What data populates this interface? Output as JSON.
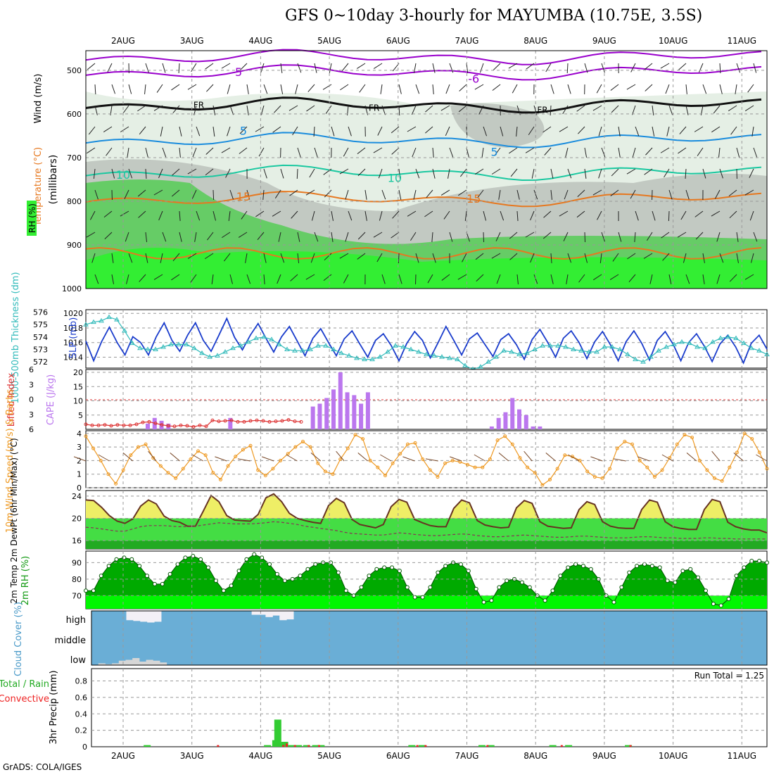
{
  "title": "GFS 0~10day 3-hourly for MAYUMBA (10.75E, 3.5S)",
  "credit": "GrADS: COLA/IGES",
  "date_labels": [
    "2AUG",
    "3AUG",
    "4AUG",
    "5AUG",
    "6AUG",
    "7AUG",
    "8AUG",
    "9AUG",
    "10AUG",
    "11AUG"
  ],
  "colors": {
    "rh_light": "#e5efe5",
    "rh_mid": "#c2c9c2",
    "rh_green": "#66cc66",
    "rh_bright": "#33ee33",
    "temp_purple": "#9900cc",
    "temp_blue": "#1a8cdd",
    "temp_teal": "#1ac8a0",
    "temp_orange": "#e67820",
    "slp": "#1a3ccc",
    "thickness": "#33bbbb",
    "cape": "#bb77ee",
    "lifted": "#dd3333",
    "wind_speed": "#ee9922",
    "temp_fill": "#eeee66",
    "dew_fill": "#44dd44",
    "rh2m_dark": "#00aa00",
    "rh2m_light": "#00ff00",
    "cloud_bg": "#6aaed6",
    "cloud_high": "#f3f0f6",
    "cloud_low": "#d6d6d6",
    "precip_total": "#33cc33",
    "precip_conv": "#ee2222"
  },
  "chart_data": [
    {
      "type": "heatmap",
      "name": "upper",
      "ylabel": "Wind (m/s)",
      "ylabel2": "Temperature (°C)",
      "ylabel3": "(millibars)",
      "legend_label": "RH (%)",
      "y_ticks": [
        500,
        600,
        700,
        800,
        900,
        1000
      ],
      "ylim": [
        455,
        1000
      ],
      "contour_labels": [
        {
          "text": "-5",
          "day": 3.65,
          "p": 505,
          "color": "temp_purple"
        },
        {
          "text": "-6",
          "day": 7.1,
          "p": 520,
          "color": "temp_purple"
        },
        {
          "text": "FR",
          "day": 3.1,
          "p": 578,
          "color": "black"
        },
        {
          "text": "FR",
          "day": 5.65,
          "p": 585,
          "color": "black"
        },
        {
          "text": "FR",
          "day": 8.1,
          "p": 590,
          "color": "black"
        },
        {
          "text": "5",
          "day": 3.75,
          "p": 640,
          "color": "temp_blue"
        },
        {
          "text": "5",
          "day": 7.4,
          "p": 688,
          "color": "temp_blue"
        },
        {
          "text": "10",
          "day": 2.0,
          "p": 740,
          "color": "temp_teal"
        },
        {
          "text": "10",
          "day": 5.95,
          "p": 748,
          "color": "temp_teal"
        },
        {
          "text": "15",
          "day": 3.75,
          "p": 790,
          "color": "temp_orange"
        },
        {
          "text": "15",
          "day": 7.1,
          "p": 795,
          "color": "temp_orange"
        }
      ]
    },
    {
      "type": "line",
      "name": "slp_thickness",
      "ylabel_left": "1000-500mb Thickness (dm)",
      "ylabel_right": "SLP (mb)",
      "left_ticks": [
        572,
        573,
        574,
        575,
        576
      ],
      "left_lim": [
        571.5,
        576.2
      ],
      "right_ticks": [
        1014,
        1016,
        1018,
        1020
      ],
      "right_lim": [
        1012.5,
        1020.5
      ],
      "series": [
        {
          "name": "SLP",
          "color_key": "slp",
          "values": [
            1016.2,
            1013.5,
            1016.1,
            1018.1,
            1016.0,
            1014.3,
            1016.8,
            1016.0,
            1014.3,
            1016.8,
            1018.7,
            1016.3,
            1014.8,
            1017.0,
            1018.7,
            1016.3,
            1014.8,
            1017.0,
            1019.3,
            1016.7,
            1015.0,
            1017.0,
            1018.6,
            1016.6,
            1014.7,
            1016.8,
            1018.2,
            1016.2,
            1014.2,
            1016.6,
            1017.9,
            1016.0,
            1014.2,
            1016.5,
            1017.6,
            1015.8,
            1014.0,
            1016.3,
            1017.2,
            1015.6,
            1013.5,
            1015.9,
            1017.5,
            1016.3,
            1013.9,
            1016.0,
            1018.2,
            1016.3,
            1014.3,
            1016.5,
            1017.3,
            1015.7,
            1014.1,
            1016.4,
            1017.2,
            1015.7,
            1013.7,
            1016.4,
            1017.8,
            1016.0,
            1014.0,
            1016.6,
            1017.6,
            1016.0,
            1013.8,
            1016.1,
            1017.5,
            1015.7,
            1013.5,
            1016.1,
            1017.6,
            1015.9,
            1013.6,
            1016.3,
            1017.5,
            1015.8,
            1013.5,
            1016.0,
            1017.2,
            1015.5,
            1013.4,
            1015.8,
            1017.0,
            1015.4,
            1013.2,
            1015.9,
            1017.0,
            1015.1
          ]
        },
        {
          "name": "Thickness",
          "color_key": "thickness",
          "values": [
            575.0,
            575.2,
            575.3,
            575.6,
            575.4,
            574.5,
            573.5,
            573.1,
            573.0,
            573.0,
            573.2,
            573.4,
            573.4,
            573.4,
            573.1,
            572.7,
            572.4,
            572.5,
            572.8,
            573.1,
            573.3,
            573.6,
            573.9,
            574.0,
            573.8,
            573.4,
            573.0,
            572.9,
            572.9,
            573.0,
            573.3,
            573.3,
            573.0,
            572.7,
            572.5,
            572.3,
            572.2,
            572.2,
            572.4,
            572.8,
            573.3,
            573.2,
            573.0,
            572.8,
            572.6,
            572.5,
            572.4,
            572.3,
            572.2,
            571.7,
            571.4,
            571.6,
            572.0,
            572.4,
            572.9,
            572.8,
            572.6,
            572.7,
            573.0,
            573.3,
            573.3,
            573.3,
            573.2,
            573.0,
            572.9,
            572.8,
            572.8,
            573.2,
            573.2,
            573.0,
            572.6,
            572.2,
            572.0,
            572.4,
            572.9,
            573.2,
            573.4,
            573.6,
            573.5,
            573.2,
            573.1,
            573.6,
            573.9,
            574.0,
            573.9,
            573.5,
            573.1,
            572.9,
            572.6
          ]
        }
      ]
    },
    {
      "type": "bar",
      "name": "cape_li",
      "ylabel_left": "Lifted Index",
      "ylabel_right": "CAPE (J/kg)",
      "left_ticks": [
        -6,
        -3,
        0,
        3,
        6
      ],
      "left_tick_labels": [
        "6",
        "3",
        "0",
        "3",
        "6"
      ],
      "right_ticks": [
        5,
        10,
        15,
        20
      ],
      "right_lim": [
        0,
        21
      ],
      "cape": [
        0,
        0,
        0,
        0,
        0,
        0,
        0,
        0,
        0,
        2,
        4,
        3,
        2,
        0,
        0,
        0,
        0,
        0,
        0,
        0,
        0,
        4,
        0,
        0,
        0,
        0,
        0,
        0,
        0,
        0,
        0,
        0,
        0,
        8,
        9,
        11,
        14,
        20,
        13,
        12,
        9,
        13,
        0,
        0,
        0,
        0,
        0,
        0,
        0,
        0,
        0,
        0,
        0,
        0,
        0,
        0,
        0,
        0,
        0,
        1,
        4,
        6,
        11,
        7,
        5,
        1,
        1,
        0,
        0,
        0,
        0,
        0,
        0,
        0,
        0,
        0,
        0,
        0,
        0,
        0,
        0,
        0,
        0,
        0,
        0,
        0,
        0,
        0,
        0,
        0,
        0,
        0,
        0,
        0,
        0,
        0,
        0,
        0,
        0,
        0
      ],
      "cape_indices_start": 0,
      "lifted_index": [
        5,
        5.2,
        5.2,
        5.1,
        5.3,
        5.1,
        5.2,
        5.2,
        5.0,
        4.6,
        4.5,
        4.8,
        5.1,
        5.3,
        5.4,
        5.2,
        5.3,
        5.5,
        5.2,
        5.4,
        4.2,
        4.4,
        4.3,
        4.2,
        4.5,
        4.5,
        4.3,
        4.2,
        4.3,
        4.5,
        4.4,
        4.3,
        4.1,
        4.4,
        4.5
      ]
    },
    {
      "type": "line",
      "name": "wind10m",
      "ylabel": "10m Wind Speed (m/s) & Barbs",
      "y_ticks": [
        0,
        1,
        2,
        3,
        4
      ],
      "ylim": [
        0,
        4.2
      ],
      "values": [
        3.8,
        2.9,
        2.0,
        1.0,
        0.3,
        1.3,
        2.4,
        3.0,
        3.2,
        2.2,
        1.6,
        1.1,
        0.7,
        1.4,
        2.1,
        2.7,
        2.4,
        1.1,
        0.6,
        1.6,
        2.3,
        2.8,
        3.1,
        1.3,
        0.9,
        1.4,
        2.0,
        2.5,
        3.0,
        3.4,
        3.0,
        1.8,
        1.2,
        1.0,
        2.1,
        2.9,
        3.9,
        3.6,
        2.0,
        1.5,
        0.9,
        1.8,
        2.5,
        3.2,
        3.3,
        2.1,
        1.3,
        0.8,
        1.8,
        2.0,
        1.9,
        1.7,
        1.5,
        1.5,
        2.1,
        3.5,
        3.8,
        3.2,
        2.2,
        1.5,
        1.1,
        0.2,
        0.6,
        1.4,
        2.4,
        2.3,
        2.0,
        1.2,
        0.8,
        0.7,
        1.4,
        2.9,
        3.4,
        3.2,
        2.0,
        1.5,
        0.8,
        1.3,
        2.2,
        3.2,
        3.9,
        3.7,
        2.0,
        1.3,
        0.7,
        0.5,
        1.5,
        2.6,
        4.0,
        3.6,
        2.6,
        1.4
      ],
      "barb_direction_deg": [
        200,
        210,
        220,
        230,
        220,
        210,
        200,
        190,
        200,
        210,
        220,
        230,
        220,
        210,
        200,
        190,
        200,
        210,
        220,
        230,
        220,
        210,
        200,
        190,
        200,
        210,
        220,
        230,
        220,
        210
      ]
    },
    {
      "type": "area",
      "name": "temp2m",
      "ylabel": "2m Temp 2m DewPt (6hr Min/Max) (°C)",
      "y_ticks": [
        16,
        20,
        24
      ],
      "ylim": [
        14.5,
        25
      ],
      "temp": [
        23.3,
        23.2,
        22.0,
        20.5,
        19.5,
        19.1,
        19.9,
        22.2,
        23.3,
        22.6,
        20.4,
        19.6,
        19.3,
        18.6,
        18.6,
        21.3,
        24.1,
        23.0,
        20.5,
        19.7,
        19.6,
        19.5,
        20.7,
        23.7,
        24.4,
        23.0,
        20.9,
        20.0,
        19.6,
        19.3,
        19.1,
        22.3,
        23.6,
        22.8,
        19.8,
        18.9,
        18.6,
        18.3,
        18.9,
        22.1,
        23.4,
        22.9,
        19.8,
        19.2,
        18.7,
        18.5,
        18.5,
        21.8,
        23.3,
        22.8,
        19.6,
        18.8,
        18.5,
        18.3,
        18.4,
        21.9,
        23.2,
        22.7,
        19.4,
        18.6,
        18.4,
        18.2,
        18.3,
        21.6,
        23.0,
        22.5,
        19.4,
        18.6,
        18.3,
        18.2,
        18.2,
        21.6,
        23.3,
        22.9,
        19.4,
        18.5,
        18.2,
        18.0,
        18.0,
        21.6,
        23.4,
        23.0,
        19.3,
        18.5,
        18.1,
        17.9,
        17.9,
        17.4
      ],
      "dewpt": [
        18.4,
        18.3,
        18.1,
        17.9,
        17.7,
        17.7,
        18.1,
        18.5,
        18.7,
        18.7,
        18.7,
        18.6,
        18.5,
        18.5,
        18.6,
        18.8,
        19.0,
        19.2,
        19.1,
        19.0,
        19.0,
        19.0,
        19.1,
        19.2,
        19.4,
        19.3,
        19.1,
        18.9,
        18.6,
        18.4,
        18.2,
        18.0,
        17.8,
        17.5,
        17.3,
        17.2,
        17.1,
        17.0,
        17.0,
        17.2,
        17.4,
        17.3,
        17.1,
        17.0,
        16.9,
        16.9,
        17.0,
        17.1,
        17.2,
        17.1,
        16.9,
        16.8,
        16.7,
        16.7,
        16.8,
        16.9,
        17.0,
        16.9,
        16.8,
        16.7,
        16.6,
        16.6,
        16.7,
        16.8,
        16.8,
        16.7,
        16.6,
        16.5,
        16.5,
        16.5,
        16.6,
        16.7,
        16.7,
        16.6,
        16.5,
        16.5,
        16.4,
        16.4,
        16.4,
        16.5,
        16.5,
        16.4,
        16.4,
        16.3,
        16.3,
        16.3,
        16.3,
        16.3
      ]
    },
    {
      "type": "area",
      "name": "rh2m",
      "ylabel": "2m RH (%)",
      "y_ticks": [
        70,
        80,
        90
      ],
      "ylim": [
        62,
        97
      ],
      "values": [
        73,
        73,
        82,
        88,
        92,
        93,
        92,
        88,
        82,
        77,
        77,
        83,
        89,
        93,
        94,
        92,
        87,
        79,
        73,
        76,
        85,
        92,
        95,
        93,
        89,
        83,
        79,
        80,
        82,
        86,
        89,
        90,
        90,
        84,
        73,
        70,
        75,
        82,
        86,
        87,
        87,
        85,
        75,
        69,
        69,
        75,
        84,
        88,
        90,
        89,
        85,
        74,
        66,
        67,
        75,
        79,
        80,
        78,
        75,
        70,
        67,
        73,
        82,
        87,
        89,
        88,
        86,
        80,
        70,
        66,
        75,
        84,
        88,
        89,
        88,
        87,
        79,
        78,
        85,
        86,
        81,
        73,
        65,
        64,
        68,
        82,
        87,
        91,
        91,
        90
      ]
    },
    {
      "type": "heatmap",
      "name": "cloud",
      "ylabel": "Cloud Cover (%)",
      "rows": [
        "high",
        "middle",
        "low"
      ],
      "high": [
        0,
        0,
        0,
        0,
        0,
        60,
        65,
        70,
        75,
        70,
        0,
        0,
        0,
        0,
        0,
        0,
        0,
        0,
        0,
        0,
        0,
        0,
        0,
        25,
        25,
        40,
        30,
        60,
        55,
        0,
        0,
        0,
        0,
        0,
        0,
        0,
        0,
        0,
        0,
        0,
        0,
        0,
        0,
        0,
        0,
        0,
        0,
        0,
        0,
        0,
        0,
        0,
        0,
        0,
        0,
        0,
        0,
        0,
        0,
        0,
        0,
        0,
        0,
        0,
        0,
        0,
        0,
        0,
        0,
        0,
        0,
        0,
        0,
        0,
        0,
        0,
        0,
        0,
        0,
        0,
        0,
        0,
        0,
        0,
        0,
        0,
        0,
        0,
        0,
        0,
        0,
        0,
        0,
        0,
        0,
        0,
        0
      ],
      "low": [
        0,
        10,
        5,
        10,
        25,
        30,
        40,
        20,
        30,
        25,
        15,
        0,
        0,
        0,
        0,
        0,
        0,
        0,
        0,
        0,
        0,
        0,
        0,
        0,
        0,
        0,
        0,
        0,
        0,
        0,
        0,
        0,
        0,
        0,
        0,
        0,
        0,
        0,
        0,
        0,
        0,
        0,
        0,
        0,
        0,
        0,
        0,
        0,
        0,
        0,
        0,
        0,
        0,
        0,
        0,
        0,
        0,
        0,
        0,
        0,
        0,
        0,
        0,
        0,
        0,
        0,
        0,
        0,
        0,
        0,
        0,
        0,
        0,
        0,
        0,
        0,
        0,
        0,
        0,
        0,
        0,
        0,
        0,
        0,
        0,
        0,
        0,
        0,
        0,
        0,
        0,
        0,
        0,
        0,
        0,
        0,
        0,
        0,
        0
      ]
    },
    {
      "type": "bar",
      "name": "precip",
      "ylabel_left": "Total / Rain Convective",
      "ylabel": "3hr Precip (mm)",
      "y_ticks": [
        0,
        0.2,
        0.4,
        0.6,
        0.8
      ],
      "y_tick_labels": [
        "0",
        "0.2",
        "0.4",
        "0.6",
        "0.8"
      ],
      "ylim": [
        0,
        0.95
      ],
      "annotation": "Run Total = 1.25",
      "total_bars": [
        [
          2.35,
          0.02
        ],
        [
          4.1,
          0.02
        ],
        [
          4.22,
          0.08
        ],
        [
          4.25,
          0.33
        ],
        [
          4.35,
          0.06
        ],
        [
          4.45,
          0.02
        ],
        [
          4.55,
          0.02
        ],
        [
          4.67,
          0.02
        ],
        [
          4.8,
          0.02
        ],
        [
          4.88,
          0.02
        ],
        [
          6.2,
          0.02
        ],
        [
          6.35,
          0.02
        ],
        [
          7.22,
          0.02
        ],
        [
          7.35,
          0.02
        ],
        [
          8.25,
          0.02
        ],
        [
          8.48,
          0.02
        ],
        [
          9.35,
          0.02
        ]
      ],
      "conv_bars": [
        [
          3.38,
          0.02
        ],
        [
          4.33,
          0.02
        ],
        [
          4.38,
          0.04
        ],
        [
          4.5,
          0.02
        ],
        [
          4.7,
          0.02
        ],
        [
          4.85,
          0.02
        ],
        [
          6.28,
          0.02
        ],
        [
          6.4,
          0.02
        ],
        [
          7.3,
          0.02
        ],
        [
          8.38,
          0.02
        ],
        [
          9.38,
          0.02
        ]
      ]
    }
  ]
}
